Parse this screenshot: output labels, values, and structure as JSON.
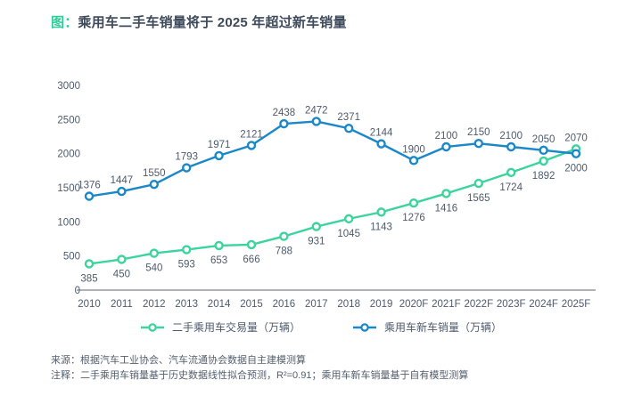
{
  "header": {
    "prefix": "图：",
    "title": "乘用车二手车销量将于 2025 年超过新车销量"
  },
  "chart_data": {
    "type": "line",
    "title": "乘用车二手车销量将于 2025 年超过新车销量",
    "categories": [
      "2010",
      "2011",
      "2012",
      "2013",
      "2014",
      "2015",
      "2016",
      "2017",
      "2018",
      "2019",
      "2020F",
      "2021F",
      "2022F",
      "2023F",
      "2024F",
      "2025F"
    ],
    "series": [
      {
        "name": "二手乘用车交易量（万辆）",
        "color": "#3bd49c",
        "values": [
          385,
          450,
          540,
          593,
          653,
          666,
          788,
          931,
          1045,
          1143,
          1276,
          1416,
          1565,
          1724,
          1892,
          2070
        ],
        "label_position": "below",
        "last_label_position": "above"
      },
      {
        "name": "乘用车新车销量（万辆）",
        "color": "#1a87c9",
        "values": [
          1376,
          1447,
          1550,
          1793,
          1971,
          2121,
          2438,
          2472,
          2371,
          2144,
          1900,
          2100,
          2150,
          2100,
          2050,
          2000
        ],
        "label_position": "above",
        "last_label_position": "below"
      }
    ],
    "ylim": [
      0,
      3000
    ],
    "ytick_step": 500,
    "grid": false,
    "legend_position": "bottom",
    "marker": "open-circle"
  },
  "notes": {
    "source": "来源：根据汽车工业协会、汽车流通协会数据自主建模测算",
    "annotation": "注释：二手乘用车销量基于历史数据线性拟合预测，R²=0.91；乘用车新车销量基于自有模型测算"
  },
  "colors": {
    "accent_green": "#2fce97",
    "line_green": "#3bd49c",
    "line_blue": "#1a87c9",
    "axis_line": "#5c6775",
    "text": "#4f5b6c",
    "title_text": "#3e4a5b"
  }
}
